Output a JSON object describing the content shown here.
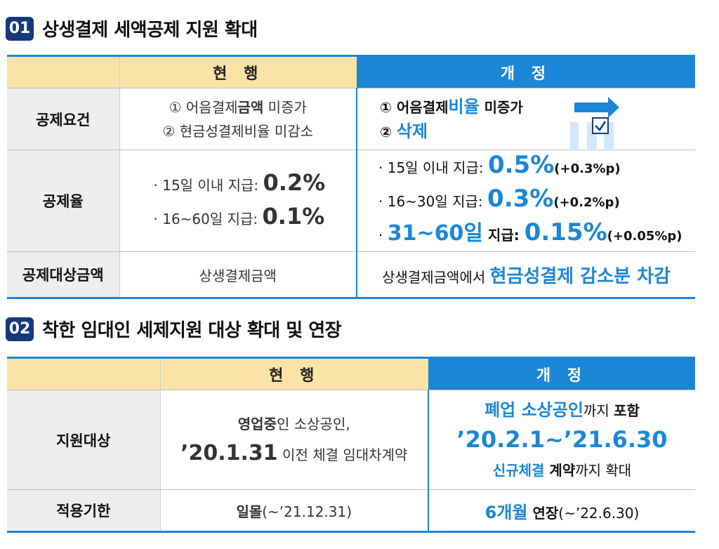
{
  "section1": {
    "num": "01",
    "title": "상생결제 세액공제 지원 확대",
    "header_current": "현 행",
    "header_new": "개 정",
    "rows": {
      "req": {
        "label": "공제요건",
        "cur1_pre": "① 어음결제",
        "cur1_bold": "금액",
        "cur1_post": " 미증가",
        "cur2": "② 현금성결제비율 미감소",
        "new1_pre": "① 어음결제",
        "new1_blue": "비율",
        "new1_post": " 미증가",
        "new2_pre": "② ",
        "new2_blue": "삭제"
      },
      "rate": {
        "label": "공제율",
        "cur1_text": "· 15일 이내 지급: ",
        "cur1_val": "0.2%",
        "cur2_text": "· 16~60일 지급: ",
        "cur2_val": "0.1%",
        "new1_text": "· 15일 이내 지급: ",
        "new1_val": "0.5%",
        "new1_delta": "(+0.3%p)",
        "new2_text": "· 16~30일  지급: ",
        "new2_val": "0.3%",
        "new2_delta": "(+0.2%p)",
        "new3_bullet": "· ",
        "new3_blue": "31~60일",
        "new3_text": " 지급: ",
        "new3_val": "0.15%",
        "new3_delta": "(+0.05%p)"
      },
      "amount": {
        "label": "공제대상금액",
        "cur": "상생결제금액",
        "new_pre": "상생결제금액에서 ",
        "new_blue": "현금성결제 감소분 차감"
      }
    }
  },
  "section2": {
    "num": "02",
    "title": "착한 임대인 세제지원 대상 확대 및 연장",
    "header_current": "현 행",
    "header_new": "개 정",
    "rows": {
      "target": {
        "label": "지원대상",
        "cur1_bold": "영업중",
        "cur1_post": "인 소상공인,",
        "cur2_bold": "’20.1.31",
        "cur2_post": " 이전 체결 임대차계약",
        "new1_blue": "폐업 소상공인",
        "new1_mid": "까지 ",
        "new1_bold": "포함",
        "new2_blue": "’20.2.1~’21.6.30",
        "new3_blue": "신규체결",
        "new3_bold": " 계약",
        "new3_post": "까지 확대"
      },
      "period": {
        "label": "적용기한",
        "cur_bold": "일몰",
        "cur_post": "(~’21.12.31)",
        "new_blue": "6개월",
        "new_bold": " 연장",
        "new_post": "(~’22.6.30)"
      }
    }
  },
  "colors": {
    "navy": "#143a7a",
    "blue": "#1b86d6",
    "header_yellow": "#fbe3a8",
    "label_gray": "#eeeeee"
  }
}
